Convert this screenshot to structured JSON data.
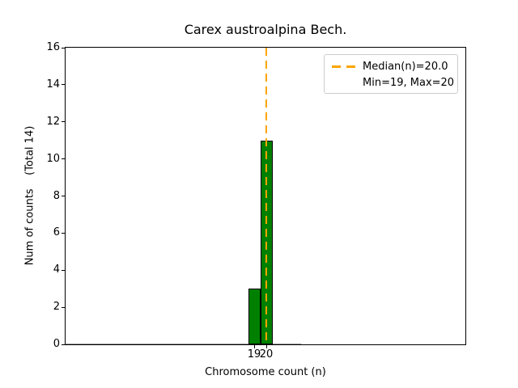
{
  "figure": {
    "title": "Carex austroalpina Bech.",
    "xlabel": "Chromosome count (n)",
    "ylabel": "Num of counts    (Total 14)"
  },
  "legend": {
    "median_label": "Median(n)=20.0",
    "minmax_label": "Min=19, Max=20"
  },
  "chart_data": {
    "type": "bar",
    "title": "Carex austroalpina Bech.",
    "xlabel": "Chromosome count (n)",
    "ylabel": "Num of counts    (Total 14)",
    "categories": [
      19,
      20
    ],
    "values": [
      3,
      11
    ],
    "total_counts": 14,
    "median": 20.0,
    "min": 19,
    "max": 20,
    "ylim": [
      0,
      16
    ],
    "yticks": [
      0,
      2,
      4,
      6,
      8,
      10,
      12,
      14,
      16
    ],
    "xticks": [
      19,
      20
    ],
    "bar_color": "#008000",
    "bar_edge_color": "#000000",
    "median_line_color": "#ffa500",
    "legend_position": "upper right",
    "grid": false
  }
}
